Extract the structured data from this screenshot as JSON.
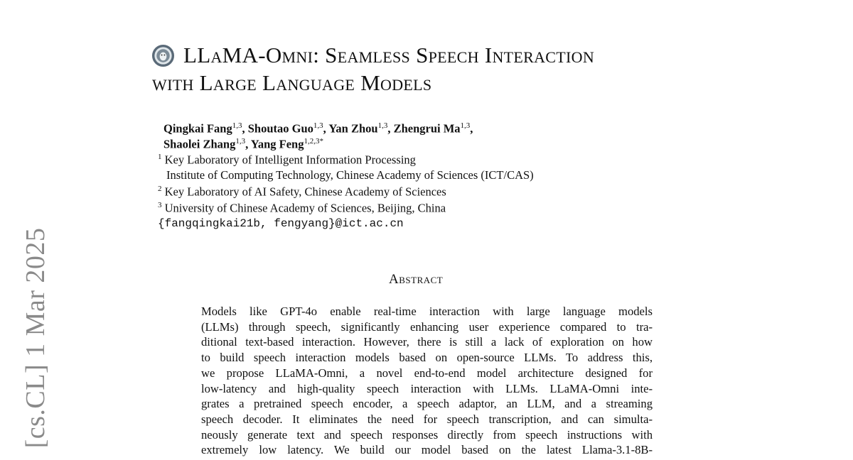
{
  "stamp": "[cs.CL]  1 Mar 2025",
  "title": {
    "line1": "LLaMA-Omni: Seamless Speech Interaction",
    "line2": "with Large Language Models"
  },
  "authors": [
    {
      "name": "Qingkai Fang",
      "aff": "1,3"
    },
    {
      "name": "Shoutao Guo",
      "aff": "1,3"
    },
    {
      "name": "Yan Zhou",
      "aff": "1,3"
    },
    {
      "name": "Zhengrui Ma",
      "aff": "1,3"
    },
    {
      "name": "Shaolei Zhang",
      "aff": "1,3"
    },
    {
      "name": "Yang Feng",
      "aff": "1,2,3*"
    }
  ],
  "affiliations": [
    {
      "num": "1",
      "text": "Key Laboratory of Intelligent Information Processing"
    },
    {
      "num": "",
      "text": "Institute of Computing Technology, Chinese Academy of Sciences (ICT/CAS)"
    },
    {
      "num": "2",
      "text": "Key Laboratory of AI Safety, Chinese Academy of Sciences"
    },
    {
      "num": "3",
      "text": "University of Chinese Academy of Sciences, Beijing, China"
    }
  ],
  "email": "{fangqingkai21b, fengyang}@ict.ac.cn",
  "abstract": {
    "heading": "Abstract",
    "lines": [
      "Models like GPT-4o enable real-time interaction with large language models",
      "(LLMs) through speech, significantly enhancing user experience compared to tra-",
      "ditional text-based interaction. However, there is still a lack of exploration on how",
      "to build speech interaction models based on open-source LLMs. To address this,",
      "we propose LLaMA-Omni, a novel end-to-end model architecture designed for",
      "low-latency and high-quality speech interaction with LLMs. LLaMA-Omni inte-",
      "grates a pretrained speech encoder, a speech adaptor, an LLM, and a streaming",
      "speech decoder. It eliminates the need for speech transcription, and can simulta-",
      "neously generate text and speech responses directly from speech instructions with",
      "extremely low latency. We build our model based on the latest Llama-3.1-8B-"
    ]
  }
}
